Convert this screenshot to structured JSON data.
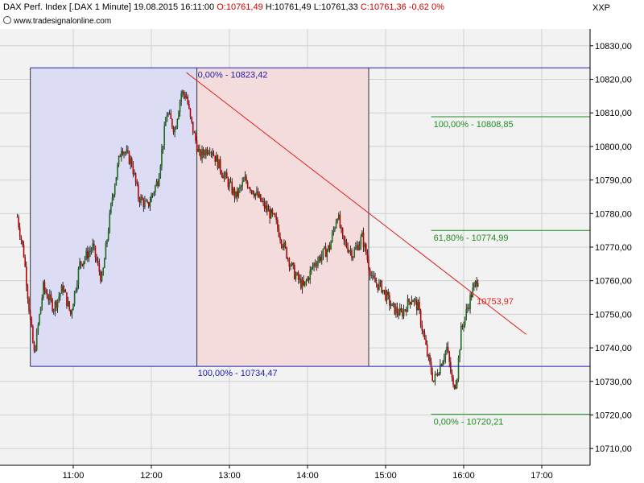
{
  "header": {
    "instrument": "DAX Perf. Index [.DAX",
    "interval": "1 Minute]",
    "datetime": "19.08.2015 16:11:00",
    "open": "O:10761,49",
    "high": "H:10761,49",
    "low": "L:10761,33",
    "close": "C:10761,36",
    "change": "-0,62",
    "change_pct": "0%",
    "symbol": "XXP",
    "source": "www.tradesignalonline.com"
  },
  "colors": {
    "up_candle": "#1a6b1a",
    "down_candle": "#c00000",
    "blue_zone": "#dcdcf5",
    "red_zone": "#f4dcdc",
    "blue_line": "#2020b0",
    "green_line": "#1f8c1f",
    "trend_line": "#e02020",
    "grid": "#d0d0d0"
  },
  "chart_data": {
    "type": "candlestick",
    "y_range": [
      10705,
      10835
    ],
    "y_ticks": [
      "10710,00",
      "10720,00",
      "10730,00",
      "10740,00",
      "10750,00",
      "10760,00",
      "10770,00",
      "10780,00",
      "10790,00",
      "10800,00",
      "10810,00",
      "10820,00",
      "10830,00"
    ],
    "x_ticks": [
      "11:00",
      "12:00",
      "13:00",
      "14:00",
      "15:00",
      "16:00",
      "17:00"
    ],
    "price_path": [
      [
        "10:17",
        10779
      ],
      [
        "10:22",
        10768
      ],
      [
        "10:27",
        10748
      ],
      [
        "10:30",
        10738
      ],
      [
        "10:37",
        10758
      ],
      [
        "10:45",
        10752
      ],
      [
        "10:52",
        10758
      ],
      [
        "10:58",
        10750
      ],
      [
        "11:05",
        10765
      ],
      [
        "11:15",
        10770
      ],
      [
        "11:22",
        10760
      ],
      [
        "11:30",
        10785
      ],
      [
        "11:37",
        10800
      ],
      [
        "11:45",
        10795
      ],
      [
        "11:50",
        10785
      ],
      [
        "11:57",
        10782
      ],
      [
        "12:05",
        10790
      ],
      [
        "12:12",
        10810
      ],
      [
        "12:18",
        10805
      ],
      [
        "12:23",
        10816
      ],
      [
        "12:27",
        10815
      ],
      [
        "12:30",
        10808
      ],
      [
        "12:37",
        10797
      ],
      [
        "12:45",
        10800
      ],
      [
        "12:55",
        10792
      ],
      [
        "13:05",
        10785
      ],
      [
        "13:12",
        10790
      ],
      [
        "13:20",
        10786
      ],
      [
        "13:27",
        10782
      ],
      [
        "13:35",
        10778
      ],
      [
        "13:42",
        10770
      ],
      [
        "13:50",
        10762
      ],
      [
        "13:57",
        10758
      ],
      [
        "14:05",
        10765
      ],
      [
        "14:12",
        10768
      ],
      [
        "14:17",
        10770
      ],
      [
        "14:23",
        10780
      ],
      [
        "14:27",
        10772
      ],
      [
        "14:35",
        10768
      ],
      [
        "14:42",
        10773
      ],
      [
        "14:50",
        10760
      ],
      [
        "14:57",
        10758
      ],
      [
        "15:05",
        10752
      ],
      [
        "15:12",
        10750
      ],
      [
        "15:20",
        10755
      ],
      [
        "15:25",
        10752
      ],
      [
        "15:32",
        10738
      ],
      [
        "15:37",
        10730
      ],
      [
        "15:42",
        10735
      ],
      [
        "15:47",
        10740
      ],
      [
        "15:52",
        10728
      ],
      [
        "15:55",
        10732
      ],
      [
        "15:58",
        10745
      ],
      [
        "16:03",
        10752
      ],
      [
        "16:06",
        10756
      ],
      [
        "16:11",
        10761
      ]
    ],
    "fib_left": {
      "top_label": "0,00% - 10823,42",
      "bottom_label": "100,00% - 10734,47",
      "top_value": 10823.42,
      "bottom_value": 10734.47,
      "start_time": "10:27",
      "split_time": "12:35",
      "end_time": "14:47"
    },
    "fib_right": {
      "levels": [
        {
          "label": "100,00% - 10808,85",
          "value": 10808.85
        },
        {
          "label": "61,80% - 10774,99",
          "value": 10774.99
        },
        {
          "label": "0,00% - 10720,21",
          "value": 10720.21
        }
      ],
      "start_time": "15:35",
      "end_time": "18:00"
    },
    "trendline": {
      "start": [
        "12:27",
        10822
      ],
      "end": [
        "16:48",
        10744
      ],
      "label": "10753,97",
      "label_value": 10753.97
    }
  }
}
